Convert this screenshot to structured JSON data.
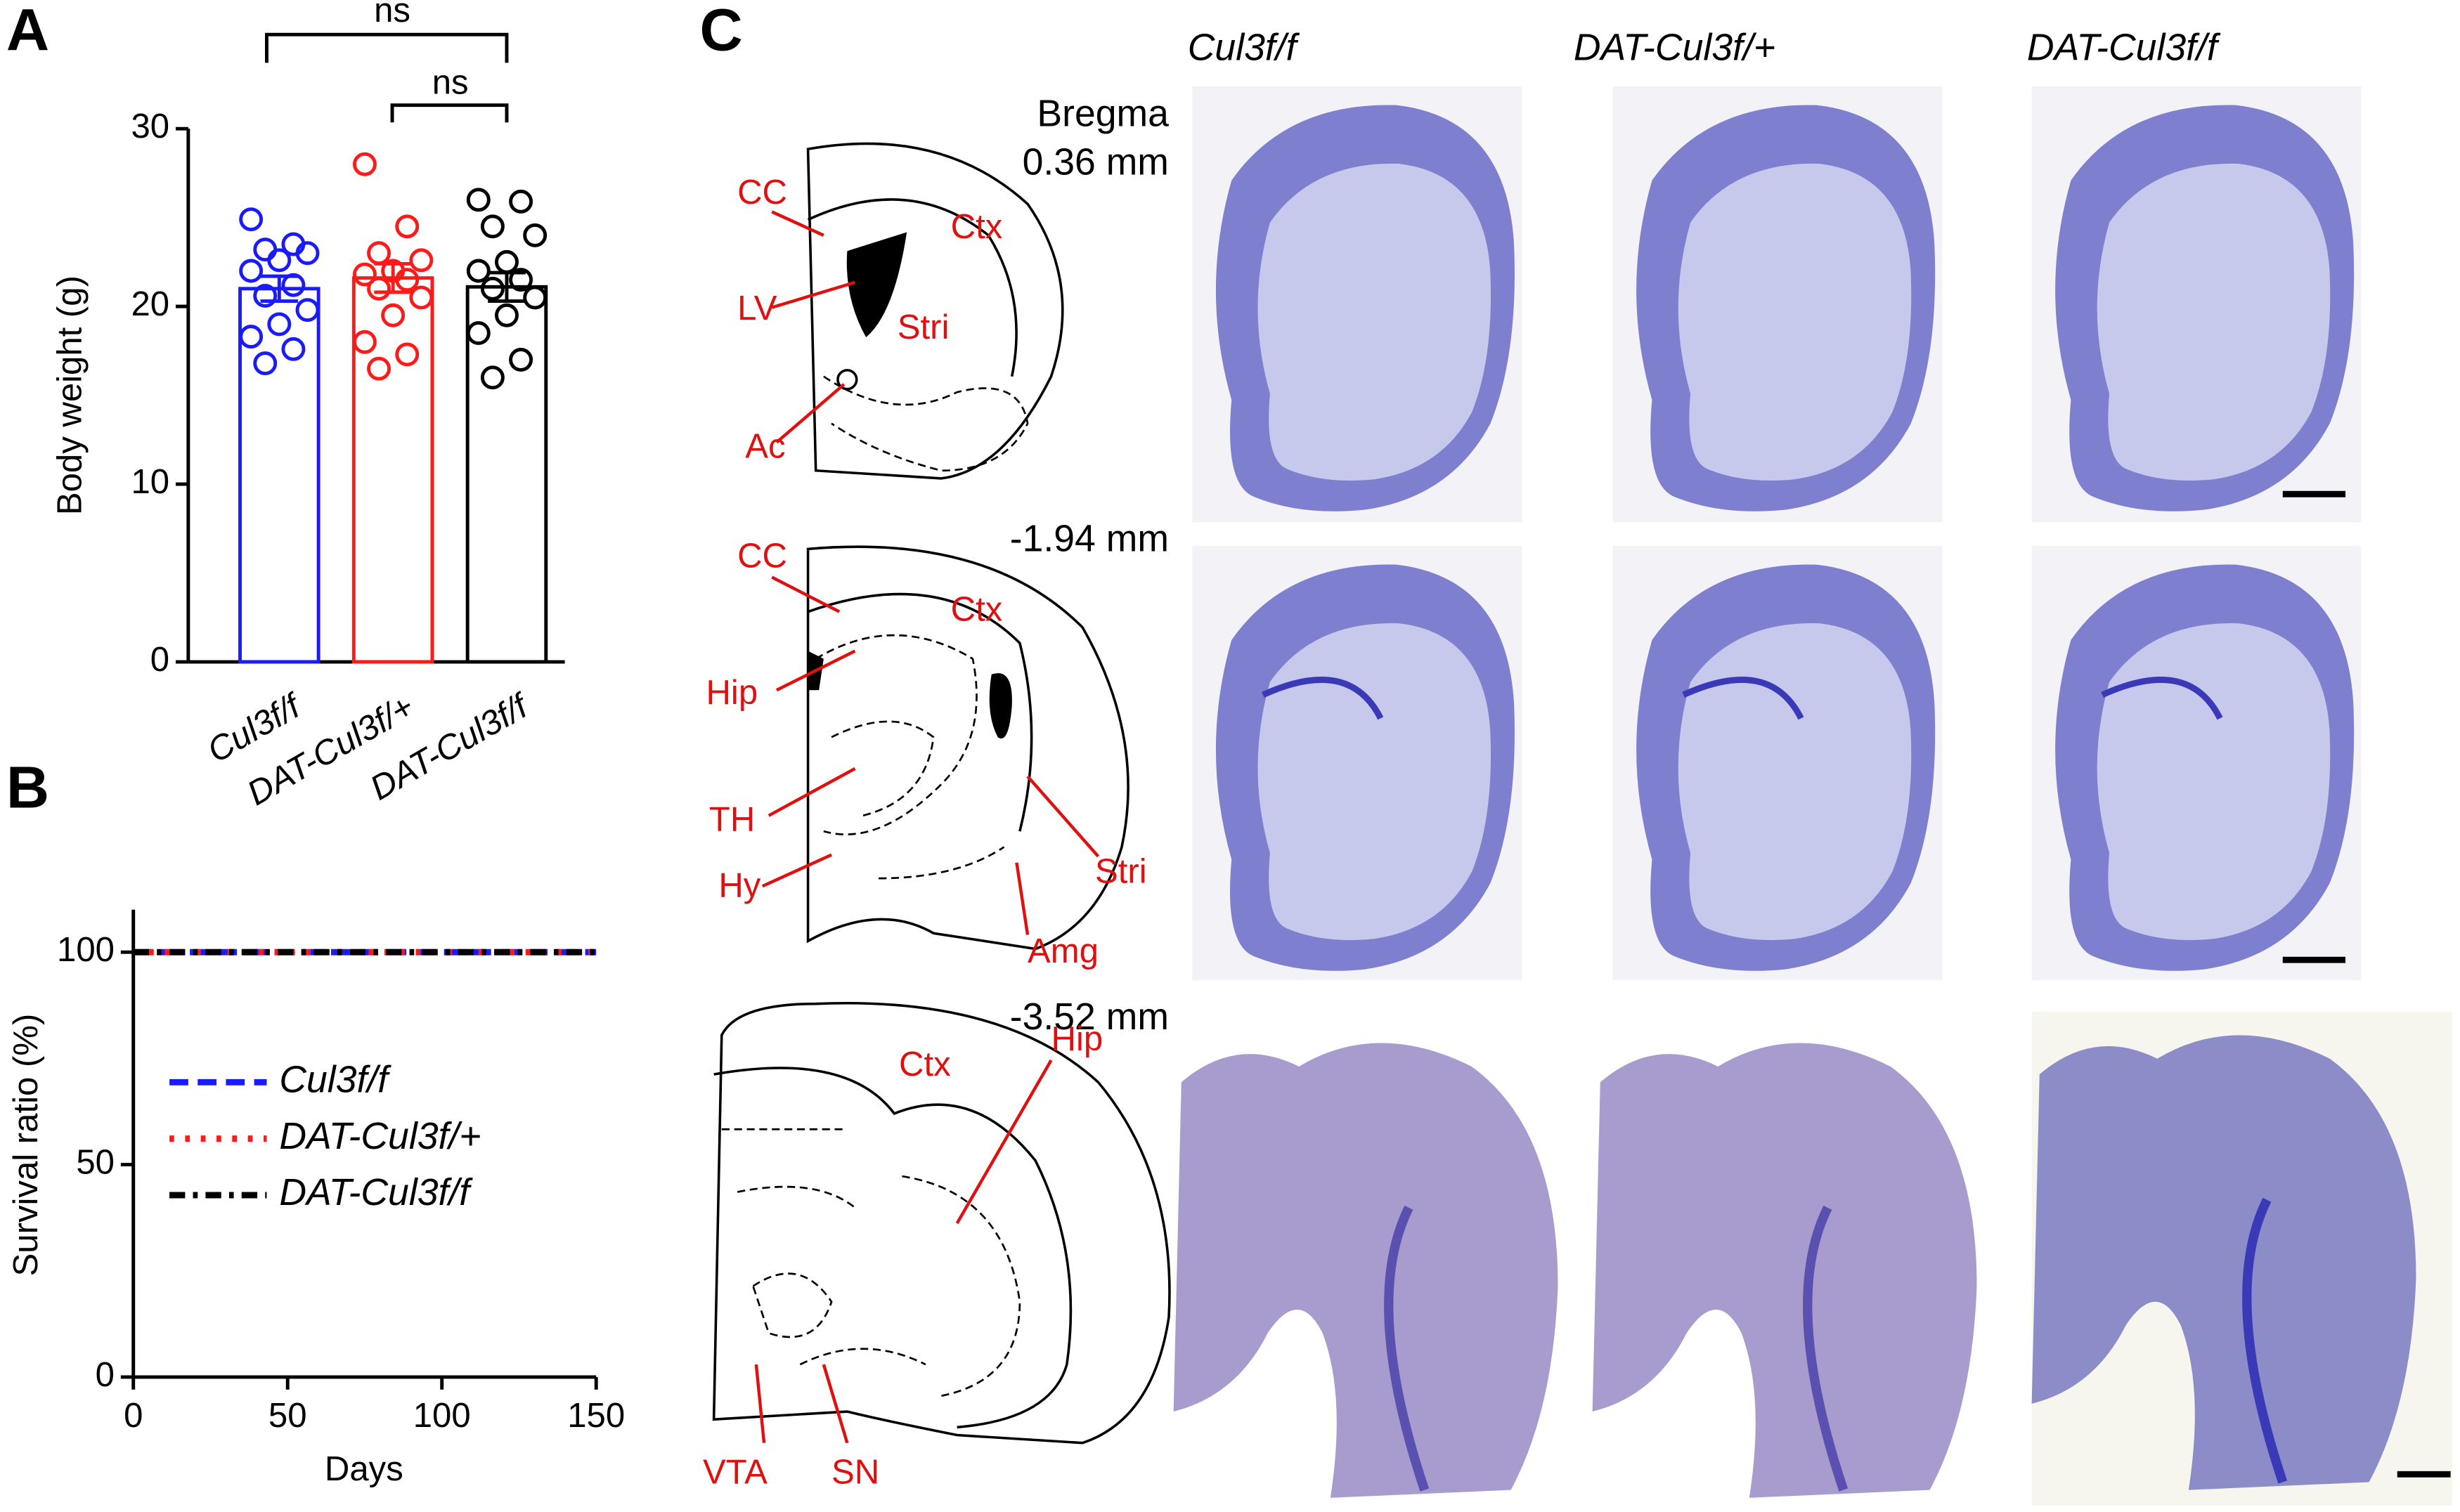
{
  "panel_labels": [
    "A",
    "B",
    "C"
  ],
  "chart_data": [
    {
      "type": "bar",
      "categories": [
        "Cul3f/f",
        "DAT-Cul3f/+",
        "DAT-Cul3f/f"
      ],
      "values": [
        21.0,
        21.6,
        21.1
      ],
      "errors": [
        0.7,
        0.8,
        0.8
      ],
      "colors": [
        "#1a1aff",
        "#ff1a1a",
        "#000000"
      ],
      "points": [
        [
          24.9,
          23.5,
          23.2,
          23.0,
          22.6,
          22.0,
          21.2,
          20.6,
          19.8,
          19.0,
          18.3,
          17.6,
          16.8
        ],
        [
          28.0,
          24.5,
          23.0,
          22.6,
          22.0,
          21.8,
          21.5,
          21.0,
          20.5,
          19.5,
          18.0,
          17.3,
          16.5
        ],
        [
          26.0,
          25.9,
          24.5,
          24.0,
          22.5,
          22.0,
          21.5,
          21.0,
          20.5,
          19.5,
          18.5,
          17.0,
          16.0
        ]
      ],
      "y_label": "Body weight (g)",
      "ylim": [
        0,
        30
      ],
      "yticks": [
        0,
        10,
        20,
        30
      ],
      "annotations": [
        "ns",
        "ns"
      ]
    },
    {
      "type": "line",
      "x": [
        0,
        150
      ],
      "series": [
        {
          "name": "Cul3f/f",
          "color": "#1a1aff",
          "dash": "dashed",
          "values": [
            100,
            100
          ]
        },
        {
          "name": "DAT-Cul3f/+",
          "color": "#ff1a1a",
          "dash": "dotted",
          "values": [
            100,
            100
          ]
        },
        {
          "name": "DAT-Cul3f/f",
          "color": "#000000",
          "dash": "dash-dot",
          "values": [
            100,
            100
          ]
        }
      ],
      "x_label": "Days",
      "y_label": "Survival ratio (%)",
      "xlim": [
        0,
        150
      ],
      "xticks": [
        0,
        50,
        100,
        150
      ],
      "ylim": [
        0,
        110
      ],
      "yticks": [
        0,
        50,
        100
      ]
    }
  ],
  "panel_c": {
    "columns": [
      "Cul3f/f",
      "DAT-Cul3f/+",
      "DAT-Cul3f/f"
    ],
    "bregma": "Bregma",
    "levels": [
      "0.36 mm",
      "-1.94 mm",
      "-3.52 mm"
    ],
    "regions": [
      [
        "CC",
        "Ctx",
        "LV",
        "Stri",
        "Ac"
      ],
      [
        "CC",
        "Ctx",
        "Hip",
        "TH",
        "Hy",
        "Stri",
        "Amg"
      ],
      [
        "Ctx",
        "Hip",
        "VTA",
        "SN"
      ]
    ]
  }
}
